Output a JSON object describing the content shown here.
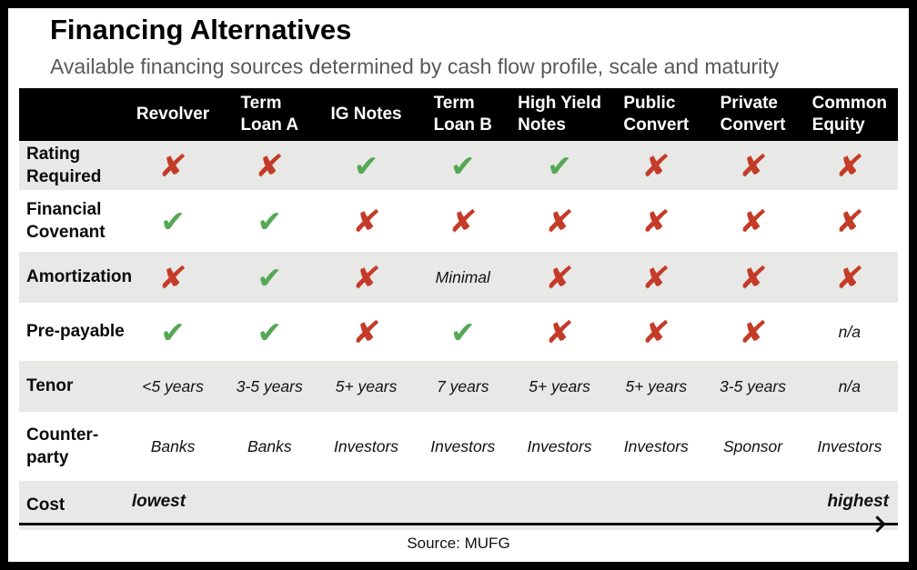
{
  "header": {
    "title": "Financing Alternatives",
    "subtitle": "Available financing sources determined by cash flow profile, scale and maturity"
  },
  "table": {
    "columns": [
      "Revolver",
      "Term\nLoan A",
      "IG Notes",
      "Term\nLoan B",
      "High Yield\nNotes",
      "Public\nConvert",
      "Private\nConvert",
      "Common\nEquity"
    ],
    "rows": [
      {
        "label": "Rating\nRequired",
        "cells": [
          "cross",
          "cross",
          "check",
          "check",
          "check",
          "cross",
          "cross",
          "cross"
        ]
      },
      {
        "label": "Financial\nCovenant",
        "cells": [
          "check",
          "check",
          "cross",
          "cross",
          "cross",
          "cross",
          "cross",
          "cross"
        ]
      },
      {
        "label": "Amortization",
        "cells": [
          "cross",
          "check",
          "cross",
          "Minimal",
          "cross",
          "cross",
          "cross",
          "cross"
        ]
      },
      {
        "label": "Pre-payable",
        "cells": [
          "check",
          "check",
          "cross",
          "check",
          "cross",
          "cross",
          "cross",
          "n/a"
        ]
      },
      {
        "label": "Tenor",
        "cells": [
          "<5 years",
          "3-5 years",
          "5+ years",
          "7 years",
          "5+ years",
          "5+ years",
          "3-5 years",
          "n/a"
        ]
      },
      {
        "label": "Counter-\nparty",
        "cells": [
          "Banks",
          "Banks",
          "Investors",
          "Investors",
          "Investors",
          "Investors",
          "Sponsor",
          "Investors"
        ]
      }
    ],
    "cost_row": {
      "label": "Cost",
      "low": "lowest",
      "high": "highest"
    }
  },
  "icons": {
    "check": "✔",
    "cross": "✘"
  },
  "footer": {
    "source": "Source: MUFG"
  },
  "colors": {
    "check_green": "#55a855",
    "cross_red": "#c43b28",
    "band_gray": "#e8e8e6",
    "header_bg": "#000000",
    "header_text": "#ffffff",
    "subtitle_gray": "#595959"
  }
}
